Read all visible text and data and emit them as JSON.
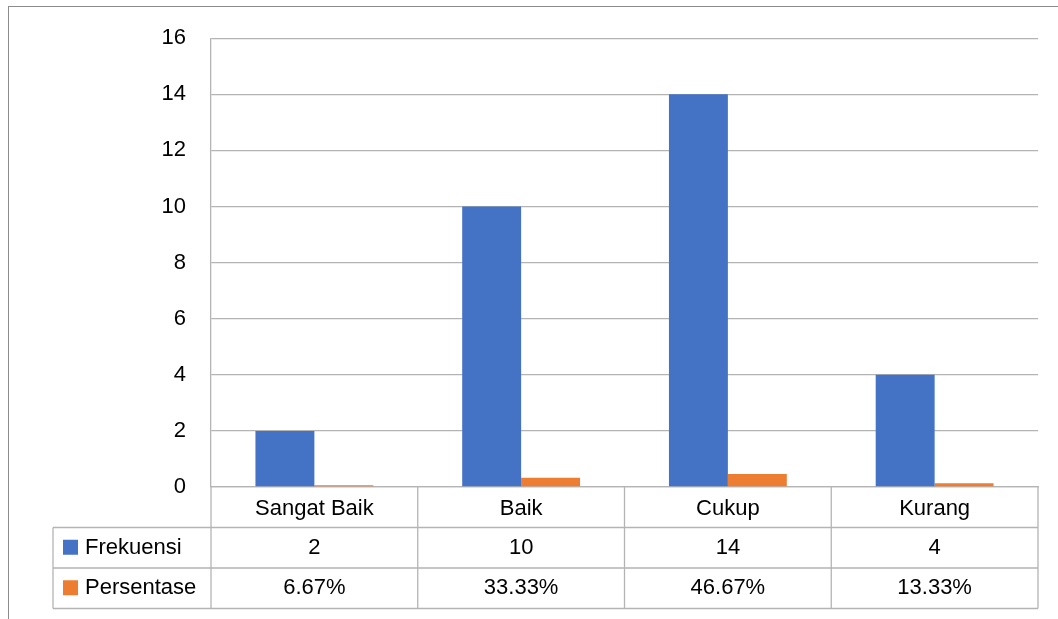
{
  "chart_data": {
    "type": "bar",
    "categories": [
      "Sangat Baik",
      "Baik",
      "Cukup",
      "Kurang"
    ],
    "series": [
      {
        "name": "Frekuensi",
        "color": "#4472c4",
        "values": [
          2,
          10,
          14,
          4
        ],
        "value_labels": [
          "2",
          "10",
          "14",
          "4"
        ]
      },
      {
        "name": "Persentase",
        "color": "#ed7d31",
        "values": [
          0.0667,
          0.3333,
          0.4667,
          0.1333
        ],
        "value_labels": [
          "6.67%",
          "33.33%",
          "46.67%",
          "13.33%"
        ]
      }
    ],
    "ylim": [
      0,
      16
    ],
    "yticks": [
      0,
      2,
      4,
      6,
      8,
      10,
      12,
      14,
      16
    ],
    "grid": "y",
    "legend": "bottom"
  }
}
